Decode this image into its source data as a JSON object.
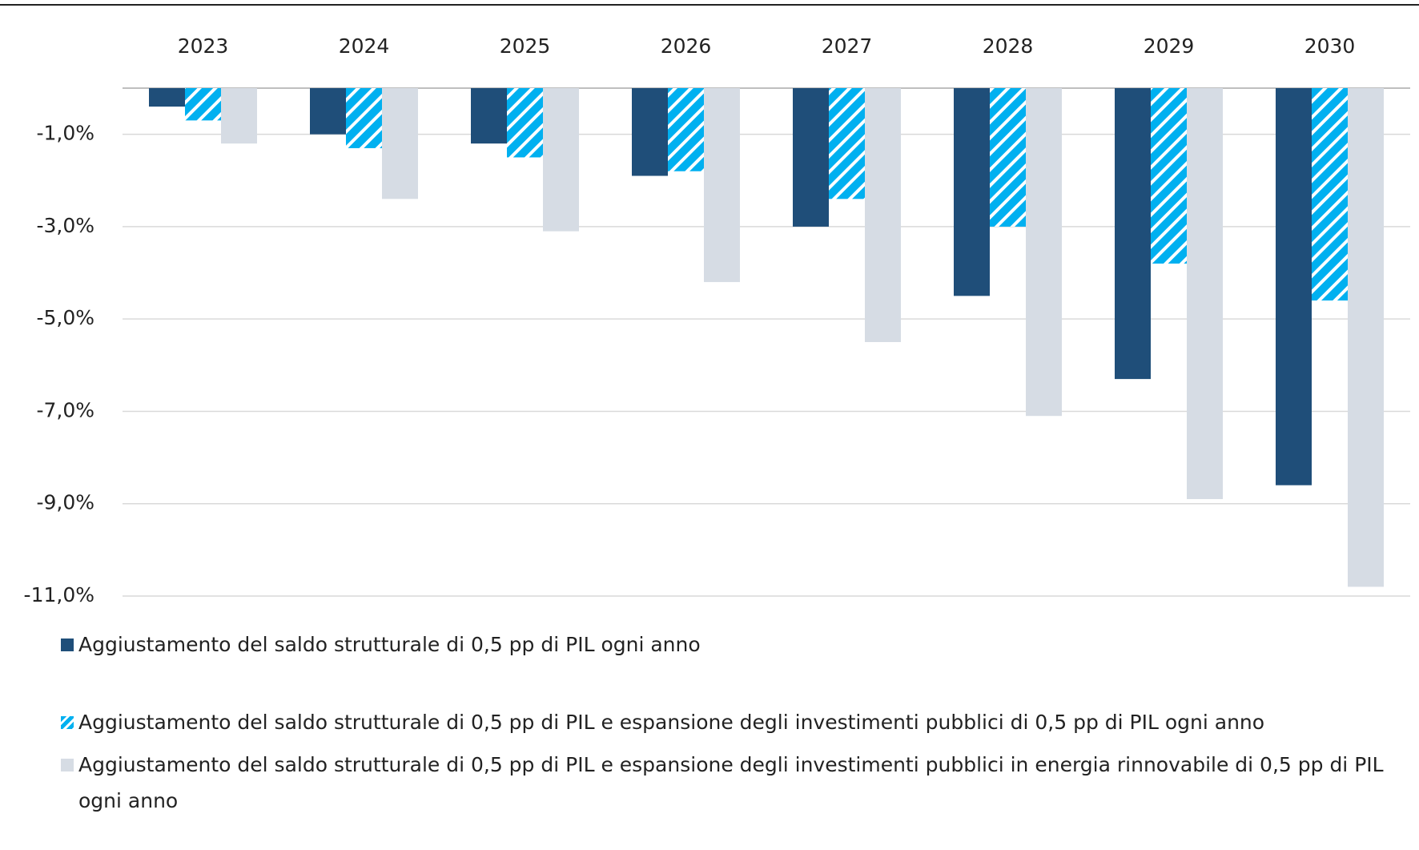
{
  "chart_data": {
    "type": "bar",
    "categories": [
      "2023",
      "2024",
      "2025",
      "2026",
      "2027",
      "2028",
      "2029",
      "2030"
    ],
    "series": [
      {
        "name": "Aggiustamento del saldo strutturale di 0,5 pp di PIL ogni anno",
        "color": "#1f4e79",
        "pattern": "solid",
        "values": [
          -0.4,
          -1.0,
          -1.2,
          -1.9,
          -3.0,
          -4.5,
          -6.3,
          -8.6
        ]
      },
      {
        "name": "Aggiustamento del saldo strutturale di 0,5 pp di PIL e espansione degli investimenti pubblici di 0,5 pp di PIL ogni anno",
        "color": "#00b0f0",
        "pattern": "hatch",
        "values": [
          -0.7,
          -1.3,
          -1.5,
          -1.8,
          -2.4,
          -3.0,
          -3.8,
          -4.6
        ]
      },
      {
        "name": "Aggiustamento del saldo strutturale di 0,5 pp di PIL e espansione degli investimenti pubblici in energia rinnovabile di 0,5 pp di PIL ogni anno",
        "color": "#d6dce4",
        "pattern": "solid",
        "values": [
          -1.2,
          -2.4,
          -3.1,
          -4.2,
          -5.5,
          -7.1,
          -8.9,
          -10.8
        ]
      }
    ],
    "ylim": [
      -11,
      0
    ],
    "yticks": [
      {
        "value": -1,
        "label": "-1,0%"
      },
      {
        "value": -3,
        "label": "-3,0%"
      },
      {
        "value": -5,
        "label": "-5,0%"
      },
      {
        "value": -7,
        "label": "-7,0%"
      },
      {
        "value": -9,
        "label": "-9,0%"
      },
      {
        "value": -11,
        "label": "-11,0%"
      }
    ],
    "grid": true,
    "legend": "bottom"
  }
}
